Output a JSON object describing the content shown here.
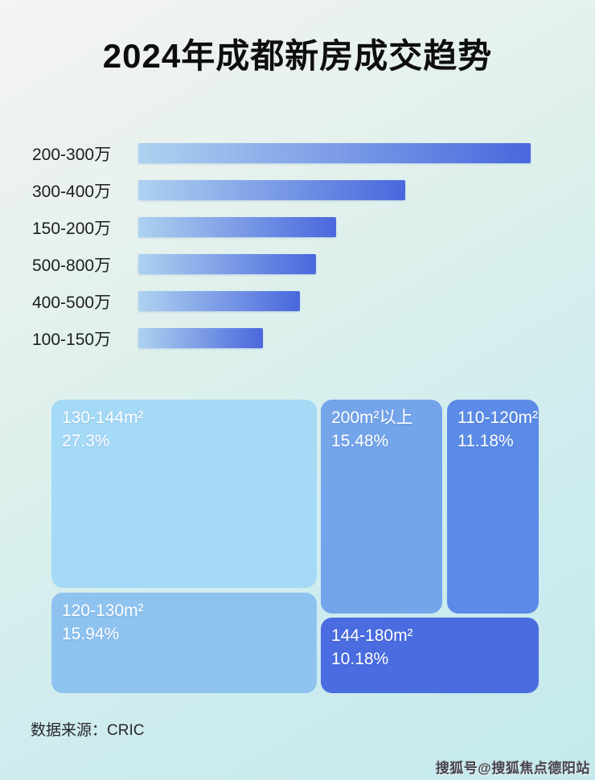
{
  "header": {
    "title": "2024年成都新房成交趋势"
  },
  "footer": {
    "source": "数据来源：CRIC",
    "watermark": "搜狐号@搜狐焦点德阳站"
  },
  "colors": {
    "bar_gradient_start": "#aed2f0",
    "bar_gradient_end": "#4a67dd",
    "title_text": "#0e0e0e",
    "treemap_text": "#ffffff"
  },
  "chart_data": [
    {
      "type": "bar",
      "orientation": "horizontal",
      "title": "2024年成都新房成交趋势",
      "xlabel": "",
      "ylabel": "",
      "grid": false,
      "legend": false,
      "value_labels_shown": false,
      "categories": [
        "200-300万",
        "300-400万",
        "150-200万",
        "500-800万",
        "400-500万",
        "100-150万"
      ],
      "values_relative_pct": [
        100,
        68,
        50.5,
        45.3,
        41.2,
        31.8
      ],
      "bar_gradient": [
        "#aed2f0",
        "#4a67dd"
      ]
    },
    {
      "type": "treemap",
      "title": "",
      "items": [
        {
          "label": "130-144m²",
          "value": 27.3,
          "pct_label": "27.3%",
          "color": "#a5daf7"
        },
        {
          "label": "120-130m²",
          "value": 15.94,
          "pct_label": "15.94%",
          "color": "#8ec3f0"
        },
        {
          "label": "200m²以上",
          "value": 15.48,
          "pct_label": "15.48%",
          "color": "#74a4ea"
        },
        {
          "label": "110-120m²",
          "value": 11.18,
          "pct_label": "11.18%",
          "color": "#5b8be6"
        },
        {
          "label": "144-180m²",
          "value": 10.18,
          "pct_label": "10.18%",
          "color": "#4a6ce0"
        }
      ]
    }
  ]
}
